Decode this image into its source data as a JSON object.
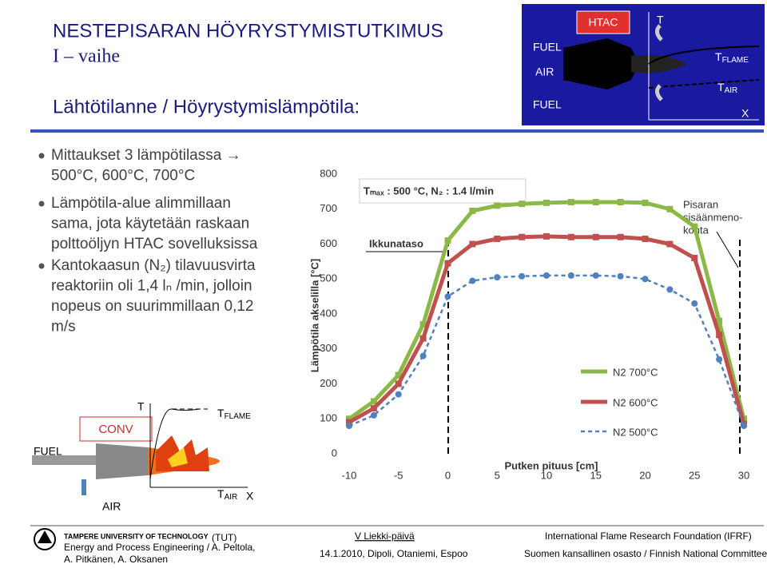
{
  "header": {
    "title": "NESTEPISARAN HÖYRYSTYMISTUTKIMUS",
    "subtitle": "I – vaihe",
    "heading": "Lähtötilanne / Höyrystymislämpötila:"
  },
  "htac_diagram": {
    "fuel_top": "FUEL",
    "air": "AIR",
    "fuel_bottom": "FUEL",
    "htac": "HTAC",
    "t": "T",
    "t_flame": [
      "T",
      "FLAME"
    ],
    "t_air": [
      "T",
      "AIR"
    ],
    "x": "X"
  },
  "bullets": [
    [
      "Mittaukset 3 lämpötilassa →",
      "500°C, 600°C, 700°C"
    ],
    [
      "Lämpötila-alue alimmillaan",
      "sama, jota käytetään raskaan",
      "polttoöljyn HTAC sovelluksissa"
    ],
    [
      "Kantokaasun (N₂) tilavuusvirta",
      "reaktoriin oli 1,4 lₙ /min, jolloin",
      "nopeus on suurimmillaan 0,12",
      "m/s"
    ]
  ],
  "conv_diagram": {
    "conv": "CONV",
    "t": "T",
    "t_flame": [
      "T",
      "FLAME"
    ],
    "fuel": "FUEL",
    "air": "AIR",
    "t_air": [
      "T",
      "AIR"
    ],
    "x": "X"
  },
  "chart_data": {
    "type": "line",
    "x_label": "Putken pituus [cm]",
    "y_label": "Lämpötila akselilla [°C]",
    "annotations": [
      "Tₘₐₓ : 500 °C, N₂ : 1.4 l/min",
      "Ikkunataso"
    ],
    "pointer_label": [
      "Pisaran",
      "sisäänmeno-",
      "kohta"
    ],
    "x": [
      -10,
      -7.5,
      -5,
      -2.5,
      0,
      2.5,
      5,
      7.5,
      10,
      12.5,
      15,
      17.5,
      20,
      22.5,
      25,
      27.5,
      30
    ],
    "series": [
      {
        "name": "N2 700°C",
        "color": "#8cb848",
        "values": [
          100,
          150,
          225,
          370,
          610,
          695,
          710,
          715,
          718,
          720,
          720,
          720,
          718,
          700,
          650,
          380,
          100
        ]
      },
      {
        "name": "N2 600°C",
        "color": "#c0504d",
        "values": [
          90,
          130,
          200,
          330,
          545,
          600,
          615,
          620,
          622,
          620,
          620,
          620,
          615,
          600,
          560,
          340,
          85
        ]
      },
      {
        "name": "N2 500°C",
        "color": "#4f81bd",
        "values": [
          80,
          110,
          170,
          280,
          450,
          495,
          505,
          508,
          510,
          510,
          510,
          508,
          500,
          470,
          430,
          270,
          80
        ]
      }
    ],
    "xlim": [
      -10,
      30
    ],
    "xticks": [
      -10,
      -5,
      0,
      5,
      10,
      15,
      20,
      25,
      30
    ],
    "ylim": [
      0,
      800
    ],
    "yticks": [
      0,
      100,
      200,
      300,
      400,
      500,
      600,
      700,
      800
    ],
    "grid": false
  },
  "footer": {
    "university": "TAMPERE UNIVERSITY OF TECHNOLOGY",
    "abbr": "(TUT)",
    "dept": "Energy and Process Engineering / A. Peltola,",
    "authors": "A. Pitkänen, A. Oksanen",
    "event": "V Liekki-päivä",
    "date": "14.1.2010, Dipoli, Otaniemi, Espoo",
    "org": "International Flame Research Foundation (IFRF)",
    "org_sub": "Suomen kansallinen osasto / Finnish National Committee"
  }
}
